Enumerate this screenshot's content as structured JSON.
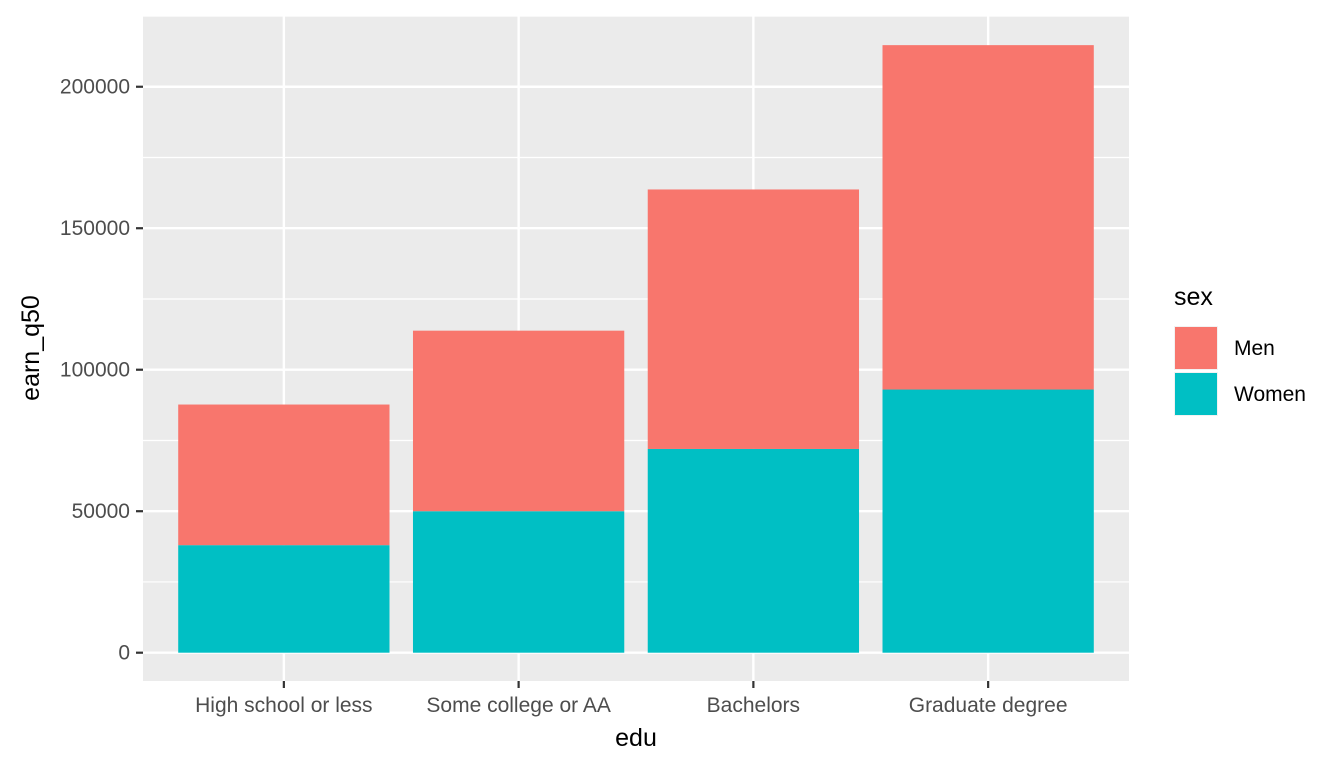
{
  "chart_data": {
    "type": "bar",
    "stacked": true,
    "categories": [
      "High school or less",
      "Some college or AA",
      "Bachelors",
      "Graduate degree"
    ],
    "series": [
      {
        "name": "Men",
        "values": [
          49700,
          63800,
          91700,
          121700
        ],
        "color": "#F8766D"
      },
      {
        "name": "Women",
        "values": [
          38000,
          50000,
          72000,
          93000
        ],
        "color": "#00BFC4"
      }
    ],
    "stack_order": [
      "Women",
      "Men"
    ],
    "title": "",
    "xlabel": "edu",
    "ylabel": "earn_q50",
    "ylim": [
      -10000,
      225000
    ],
    "yticks": [
      0,
      50000,
      100000,
      150000,
      200000
    ],
    "ytick_labels": [
      "0",
      "50000",
      "100000",
      "150000",
      "200000"
    ],
    "grid": true,
    "panel_background": "#EBEBEB",
    "grid_color": "#FFFFFF",
    "legend": {
      "title": "sex",
      "position": "right",
      "entries": [
        "Men",
        "Women"
      ]
    }
  }
}
